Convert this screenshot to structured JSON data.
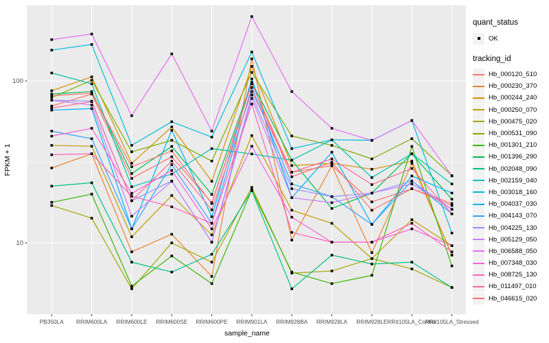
{
  "chart_data": {
    "type": "line",
    "title": "",
    "xlabel": "sample_name",
    "ylabel": "FPKM + 1",
    "y_scale": "log10",
    "y_ticks": [
      10,
      100
    ],
    "y_minor_ticks": [
      31.62
    ],
    "ylim": [
      3.5,
      290
    ],
    "grid": "white-on-gray",
    "legend_position": "right",
    "point_marker": "small-black-square",
    "x_categories": [
      "PB350LA",
      "RRIM600LA",
      "RRIM600LE",
      "RRIM600SE",
      "RRIM600PE",
      "RRIM901LA",
      "RRIM928BA",
      "RRIM928LA",
      "RRIM928LE",
      "RRII105LA_Control",
      "RRII105LA_Stressed"
    ],
    "legends": {
      "quant_status": {
        "title": "quant_status",
        "entries": [
          {
            "label": "OK",
            "shape": "black-point"
          }
        ]
      },
      "tracking_id": {
        "title": "tracking_id"
      }
    },
    "series": [
      {
        "id": "Hb_000120_510",
        "color": "#F8766D",
        "values": [
          70,
          83,
          25,
          34,
          17.7,
          96,
          27.3,
          30,
          17.9,
          21.6,
          17
        ]
      },
      {
        "id": "Hb_000230_370",
        "color": "#EA8331",
        "values": [
          29,
          35.5,
          8.8,
          11.3,
          6.2,
          137,
          10.4,
          30,
          8.7,
          31,
          8.4
        ]
      },
      {
        "id": "Hb_000244_240",
        "color": "#D89000",
        "values": [
          87,
          106,
          31,
          52,
          24,
          123,
          30,
          31,
          28.5,
          32,
          8.4
        ]
      },
      {
        "id": "Hb_000250_070",
        "color": "#C09B00",
        "values": [
          40,
          39.5,
          10.9,
          19.6,
          11.2,
          46,
          15.9,
          13.2,
          8,
          13.9,
          9.6
        ]
      },
      {
        "id": "Hb_000475_020",
        "color": "#A3A500",
        "values": [
          17,
          14.2,
          5.2,
          10,
          7.6,
          22,
          6.5,
          6.7,
          8,
          6.9,
          5.3
        ]
      },
      {
        "id": "Hb_000531_090",
        "color": "#7CAE00",
        "values": [
          79,
          101,
          36.5,
          43,
          32,
          113,
          45.7,
          40,
          33,
          44,
          26
        ]
      },
      {
        "id": "Hb_001301_210",
        "color": "#39B600",
        "values": [
          17.8,
          20,
          5.4,
          8.3,
          5.6,
          21.2,
          6.6,
          5.6,
          6.3,
          39.4,
          7.2
        ]
      },
      {
        "id": "Hb_001396_290",
        "color": "#00BB4E",
        "values": [
          83,
          86,
          26.8,
          39.4,
          19.9,
          98,
          32.4,
          16.3,
          20.3,
          35.5,
          18.6
        ]
      },
      {
        "id": "Hb_002048_090",
        "color": "#00C087",
        "values": [
          22.4,
          23.5,
          7.6,
          6.6,
          8.5,
          21,
          5.2,
          8.4,
          7.4,
          7.6,
          5.3
        ]
      },
      {
        "id": "Hb_002159_040",
        "color": "#00C0AF",
        "values": [
          112,
          96,
          22.2,
          26.6,
          38.2,
          35.4,
          32.4,
          43.3,
          25.3,
          35.5,
          23.1
        ]
      },
      {
        "id": "Hb_003018_160",
        "color": "#00BCD8",
        "values": [
          155,
          168,
          40,
          56,
          45,
          151,
          38.2,
          43.3,
          43,
          57,
          11.5
        ]
      },
      {
        "id": "Hb_004037_030",
        "color": "#00B0F6",
        "values": [
          66,
          67.5,
          12.2,
          49.5,
          14.5,
          103,
          19,
          36.3,
          13,
          25.9,
          20.3
        ]
      },
      {
        "id": "Hb_004143_070",
        "color": "#35A2FF",
        "values": [
          49,
          44,
          12.2,
          30.4,
          13.2,
          91,
          23.1,
          19.3,
          13,
          24.1,
          15.1
        ]
      },
      {
        "id": "Hb_004225_130",
        "color": "#9590FF",
        "values": [
          76,
          75,
          18.2,
          24.1,
          10.1,
          82,
          21.6,
          19.3,
          20.3,
          24.1,
          16.1
        ]
      },
      {
        "id": "Hb_005129_050",
        "color": "#C77CFF",
        "values": [
          76,
          71,
          14.6,
          24,
          10.1,
          78,
          19,
          17.7,
          20.3,
          23.1,
          16.1
        ]
      },
      {
        "id": "Hb_006588_050",
        "color": "#E76BF3",
        "values": [
          180,
          195,
          61,
          147,
          49,
          250,
          86,
          51,
          42.9,
          57,
          25.9
        ]
      },
      {
        "id": "Hb_007348_030",
        "color": "#FA62DB",
        "values": [
          45.6,
          51,
          20.2,
          28,
          12.2,
          39.5,
          14.4,
          10.1,
          10.1,
          12.2,
          9.6
        ]
      },
      {
        "id": "Hb_008725_130",
        "color": "#FF62BC",
        "values": [
          35,
          35.5,
          19.4,
          16.7,
          13.2,
          72,
          11.6,
          10.1,
          10.1,
          13.2,
          8.8
        ]
      },
      {
        "id": "Hb_011497_010",
        "color": "#FF6A98",
        "values": [
          68,
          74.5,
          18.2,
          32,
          16,
          86,
          27.3,
          33,
          22.9,
          28.8,
          15.1
        ]
      },
      {
        "id": "Hb_046615_020",
        "color": "#FC7173",
        "values": [
          81,
          84,
          29.5,
          37,
          17.5,
          97,
          25.6,
          31.5,
          15.9,
          21.6,
          17.5
        ]
      }
    ]
  },
  "colors": {
    "panel_bg": "#EBEBEB",
    "grid": "#FFFFFF",
    "point": "#000000",
    "axis_text": "#4D4D4D",
    "tick_mark": "#333333",
    "legend_key_bg": "#F2F2F2",
    "figure_bg": "#FFFFFF"
  }
}
